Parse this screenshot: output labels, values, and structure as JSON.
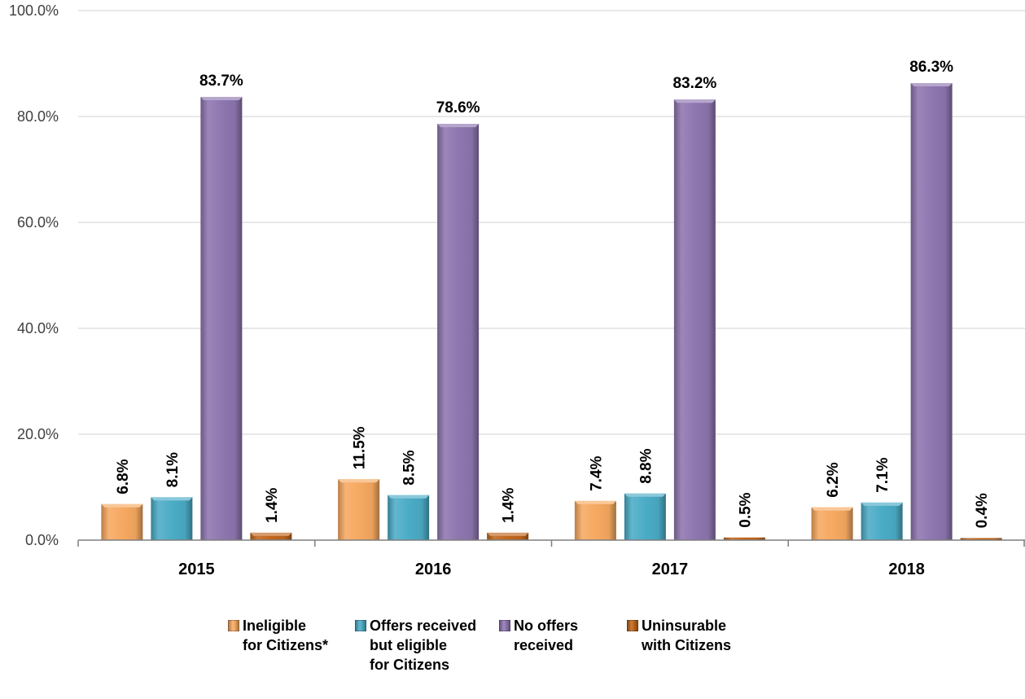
{
  "chart_data": {
    "type": "bar",
    "categories": [
      "2015",
      "2016",
      "2017",
      "2018"
    ],
    "series": [
      {
        "name": "Ineligible\nfor Citizens*",
        "values": [
          6.8,
          11.5,
          7.4,
          6.2
        ],
        "labels": [
          "6.8%",
          "11.5%",
          "7.4%",
          "6.2%"
        ],
        "color": "#F6A961"
      },
      {
        "name": "Offers received\nbut eligible\nfor Citizens",
        "values": [
          8.1,
          8.5,
          8.8,
          7.1
        ],
        "labels": [
          "8.1%",
          "8.5%",
          "8.8%",
          "7.1%"
        ],
        "color": "#4BACC6"
      },
      {
        "name": "No offers\nreceived",
        "values": [
          83.7,
          78.6,
          83.2,
          86.3
        ],
        "labels": [
          "83.7%",
          "78.6%",
          "83.2%",
          "86.3%"
        ],
        "color": "#8E76B0"
      },
      {
        "name": "Uninsurable\nwith Citizens",
        "values": [
          1.4,
          1.4,
          0.5,
          0.4
        ],
        "labels": [
          "1.4%",
          "1.4%",
          "0.5%",
          "0.4%"
        ],
        "color": "#C0661E"
      }
    ],
    "yticks": [
      "0.0%",
      "20.0%",
      "40.0%",
      "60.0%",
      "80.0%",
      "100.0%"
    ],
    "ylim": [
      0,
      100
    ],
    "grid": true,
    "legend_position": "bottom",
    "title": "",
    "xlabel": "",
    "ylabel": ""
  }
}
